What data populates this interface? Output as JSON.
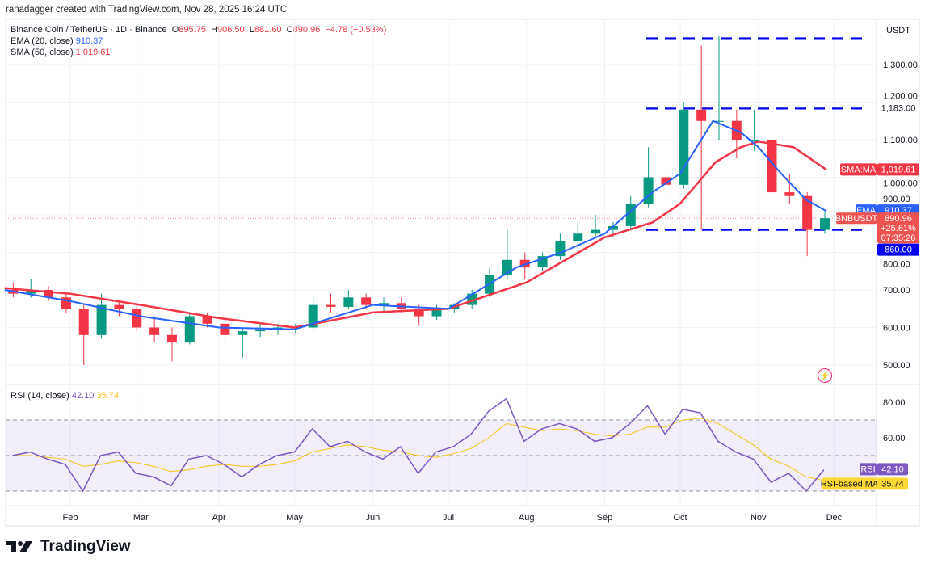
{
  "credit": "ranadagger created with TradingView.com, Nov 28, 2025 16:24 UTC",
  "legend": {
    "symbol": "Binance Coin / TetherUS · 1D · Binance",
    "o": "895.75",
    "h": "906.50",
    "l": "881.60",
    "c": "890.96",
    "change": "−4.78 (−0.53%)",
    "ema_label": "EMA (20, close)",
    "ema_value": "910.37",
    "sma_label": "SMA (50, close)",
    "sma_value": "1,019.61",
    "rsi_label": "RSI (14, close)",
    "rsi_value": "42.10",
    "rsi_ma_value": "35.74"
  },
  "badges": {
    "currency": "USDT",
    "sma_name": "SMA:MA",
    "sma_value": "1,019.61",
    "ema_name": "EMA",
    "ema_value": "910.37",
    "symbol": "BNBUSDT",
    "price": "890.96",
    "pct": "+25.61%",
    "countdown": "07:35:26",
    "level_860": "860.00",
    "level_1183": "1,183.00",
    "rsi_name": "RSI",
    "rsi_value": "42.10",
    "rsi_ma_name": "RSI-based MA",
    "rsi_ma_value": "35.74"
  },
  "colors": {
    "up": "#089981",
    "down": "#f23645",
    "ema": "#2962ff",
    "sma": "#f23645",
    "rsi": "#7e57c2",
    "rsi_ma": "#f5c518",
    "levels": "#0000ee"
  },
  "logo": "TradingView",
  "chart_data": [
    {
      "type": "candlestick",
      "interval": "weekly approximation of daily candles",
      "ylim": [
        470,
        1400
      ],
      "yticks": [
        500,
        600,
        700,
        800,
        900,
        1000,
        1100,
        1200,
        1300
      ],
      "xticks": [
        "Feb",
        "Mar",
        "Apr",
        "May",
        "Jun",
        "Jul",
        "Aug",
        "Sep",
        "Oct",
        "Nov",
        "Dec"
      ],
      "xtick_dates": [
        "2025-02-01",
        "2025-03-01",
        "2025-04-01",
        "2025-05-01",
        "2025-06-01",
        "2025-07-01",
        "2025-08-01",
        "2025-09-01",
        "2025-10-01",
        "2025-11-01",
        "2025-12-01"
      ],
      "horizontal_levels": [
        1370,
        1183,
        860
      ],
      "candles": [
        [
          "2025-01-06",
          700,
          720,
          680,
          690
        ],
        [
          "2025-01-13",
          690,
          730,
          680,
          700
        ],
        [
          "2025-01-20",
          700,
          710,
          670,
          680
        ],
        [
          "2025-01-27",
          680,
          690,
          640,
          650
        ],
        [
          "2025-02-03",
          650,
          660,
          500,
          580
        ],
        [
          "2025-02-10",
          580,
          690,
          570,
          660
        ],
        [
          "2025-02-17",
          660,
          670,
          630,
          650
        ],
        [
          "2025-02-24",
          650,
          660,
          590,
          600
        ],
        [
          "2025-03-03",
          600,
          630,
          560,
          580
        ],
        [
          "2025-03-10",
          580,
          600,
          510,
          560
        ],
        [
          "2025-03-17",
          560,
          640,
          555,
          630
        ],
        [
          "2025-03-24",
          630,
          640,
          600,
          610
        ],
        [
          "2025-03-31",
          610,
          620,
          560,
          580
        ],
        [
          "2025-04-07",
          580,
          600,
          520,
          590
        ],
        [
          "2025-04-14",
          590,
          610,
          575,
          595
        ],
        [
          "2025-04-21",
          595,
          610,
          580,
          600
        ],
        [
          "2025-04-28",
          600,
          610,
          585,
          600
        ],
        [
          "2025-05-05",
          600,
          680,
          595,
          660
        ],
        [
          "2025-05-12",
          660,
          690,
          640,
          655
        ],
        [
          "2025-05-19",
          655,
          700,
          650,
          680
        ],
        [
          "2025-05-26",
          680,
          690,
          650,
          660
        ],
        [
          "2025-06-02",
          660,
          680,
          640,
          665
        ],
        [
          "2025-06-09",
          665,
          680,
          640,
          650
        ],
        [
          "2025-06-16",
          650,
          660,
          605,
          630
        ],
        [
          "2025-06-23",
          630,
          660,
          620,
          650
        ],
        [
          "2025-06-30",
          650,
          665,
          640,
          660
        ],
        [
          "2025-07-07",
          660,
          700,
          650,
          690
        ],
        [
          "2025-07-14",
          690,
          760,
          680,
          740
        ],
        [
          "2025-07-21",
          740,
          860,
          730,
          780
        ],
        [
          "2025-07-28",
          780,
          800,
          730,
          760
        ],
        [
          "2025-08-04",
          760,
          800,
          750,
          790
        ],
        [
          "2025-08-11",
          790,
          850,
          780,
          830
        ],
        [
          "2025-08-18",
          830,
          880,
          800,
          850
        ],
        [
          "2025-08-25",
          850,
          900,
          840,
          860
        ],
        [
          "2025-09-01",
          860,
          880,
          840,
          870
        ],
        [
          "2025-09-08",
          870,
          950,
          860,
          930
        ],
        [
          "2025-09-15",
          930,
          1080,
          920,
          1000
        ],
        [
          "2025-09-22",
          1000,
          1020,
          950,
          980
        ],
        [
          "2025-09-29",
          980,
          1200,
          970,
          1180
        ],
        [
          "2025-10-06",
          1180,
          1350,
          860,
          1150
        ],
        [
          "2025-10-13",
          1150,
          1375,
          1100,
          1150
        ],
        [
          "2025-10-20",
          1150,
          1180,
          1050,
          1100
        ],
        [
          "2025-10-27",
          1100,
          1180,
          1070,
          1100
        ],
        [
          "2025-11-03",
          1100,
          1110,
          890,
          960
        ],
        [
          "2025-11-10",
          960,
          1010,
          930,
          950
        ],
        [
          "2025-11-17",
          950,
          960,
          790,
          860
        ],
        [
          "2025-11-24",
          860,
          910,
          850,
          891
        ]
      ],
      "series": [
        {
          "name": "EMA (20, close)",
          "points": [
            [
              "2025-01-06",
              700
            ],
            [
              "2025-02-01",
              670
            ],
            [
              "2025-03-01",
              630
            ],
            [
              "2025-04-01",
              600
            ],
            [
              "2025-05-01",
              595
            ],
            [
              "2025-06-01",
              660
            ],
            [
              "2025-07-01",
              650
            ],
            [
              "2025-07-28",
              760
            ],
            [
              "2025-08-15",
              800
            ],
            [
              "2025-09-01",
              850
            ],
            [
              "2025-09-20",
              960
            ],
            [
              "2025-10-01",
              1010
            ],
            [
              "2025-10-14",
              1150
            ],
            [
              "2025-10-25",
              1120
            ],
            [
              "2025-11-01",
              1080
            ],
            [
              "2025-11-10",
              1010
            ],
            [
              "2025-11-20",
              940
            ],
            [
              "2025-11-28",
              910
            ]
          ]
        },
        {
          "name": "SMA (50, close)",
          "points": [
            [
              "2025-01-06",
              705
            ],
            [
              "2025-02-01",
              690
            ],
            [
              "2025-03-01",
              660
            ],
            [
              "2025-04-01",
              625
            ],
            [
              "2025-05-01",
              600
            ],
            [
              "2025-06-01",
              640
            ],
            [
              "2025-07-01",
              650
            ],
            [
              "2025-08-01",
              720
            ],
            [
              "2025-09-01",
              840
            ],
            [
              "2025-09-20",
              880
            ],
            [
              "2025-10-01",
              930
            ],
            [
              "2025-10-15",
              1040
            ],
            [
              "2025-10-25",
              1080
            ],
            [
              "2025-11-01",
              1095
            ],
            [
              "2025-11-15",
              1080
            ],
            [
              "2025-11-28",
              1020
            ]
          ]
        }
      ]
    },
    {
      "type": "line",
      "title": "RSI (14, close)",
      "ylim": [
        20,
        90
      ],
      "yticks": [
        60,
        80
      ],
      "bands": [
        30,
        50,
        70
      ],
      "dates": [
        "2025-01-06",
        "2025-01-13",
        "2025-01-20",
        "2025-01-27",
        "2025-02-03",
        "2025-02-10",
        "2025-02-17",
        "2025-02-24",
        "2025-03-03",
        "2025-03-10",
        "2025-03-17",
        "2025-03-24",
        "2025-03-31",
        "2025-04-07",
        "2025-04-14",
        "2025-04-21",
        "2025-04-28",
        "2025-05-05",
        "2025-05-12",
        "2025-05-19",
        "2025-05-26",
        "2025-06-02",
        "2025-06-09",
        "2025-06-16",
        "2025-06-23",
        "2025-06-30",
        "2025-07-07",
        "2025-07-14",
        "2025-07-21",
        "2025-07-28",
        "2025-08-04",
        "2025-08-11",
        "2025-08-18",
        "2025-08-25",
        "2025-09-01",
        "2025-09-08",
        "2025-09-15",
        "2025-09-22",
        "2025-09-29",
        "2025-10-06",
        "2025-10-13",
        "2025-10-20",
        "2025-10-27",
        "2025-11-03",
        "2025-11-10",
        "2025-11-17",
        "2025-11-24"
      ],
      "series": [
        {
          "name": "RSI",
          "values": [
            50,
            52,
            48,
            45,
            30,
            50,
            52,
            40,
            38,
            33,
            48,
            50,
            45,
            38,
            45,
            50,
            52,
            65,
            55,
            58,
            52,
            48,
            55,
            40,
            52,
            55,
            62,
            75,
            82,
            58,
            65,
            68,
            65,
            58,
            60,
            68,
            78,
            62,
            76,
            74,
            58,
            52,
            48,
            35,
            40,
            30,
            42
          ]
        },
        {
          "name": "RSI-based MA",
          "values": [
            50,
            50,
            49,
            48,
            44,
            45,
            47,
            46,
            44,
            41,
            42,
            44,
            45,
            44,
            44,
            45,
            47,
            52,
            54,
            56,
            55,
            53,
            52,
            50,
            49,
            51,
            54,
            60,
            68,
            66,
            64,
            65,
            64,
            62,
            61,
            62,
            66,
            66,
            70,
            71,
            68,
            62,
            56,
            48,
            44,
            38,
            36
          ]
        }
      ]
    }
  ]
}
